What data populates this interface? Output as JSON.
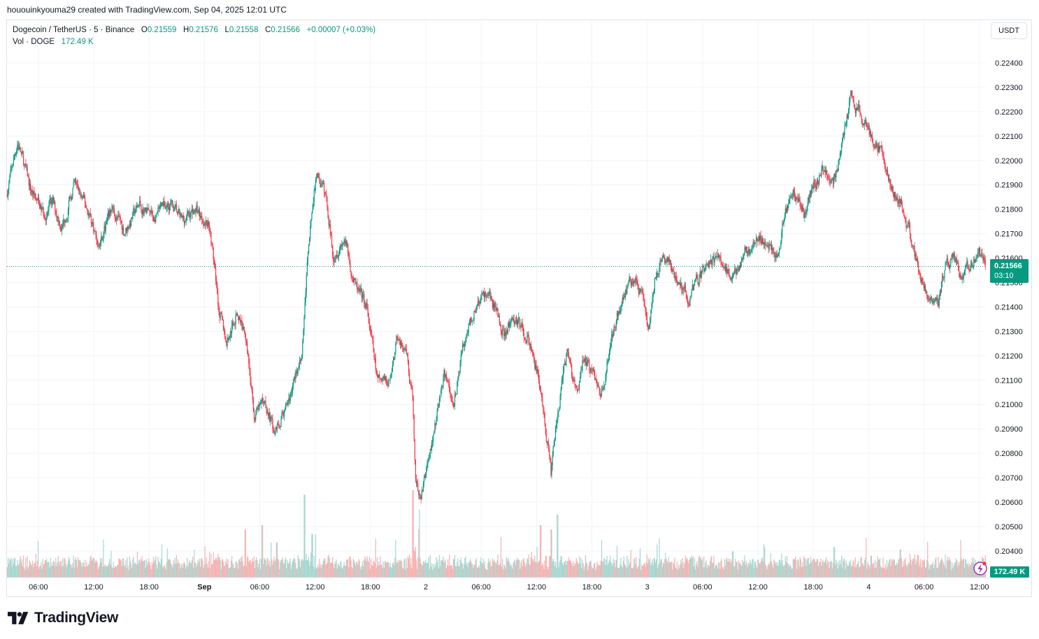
{
  "header": {
    "text": "hououinkyouma29 created with TradingView.com, Sep 04, 2025 12:01 UTC"
  },
  "legend": {
    "symbol": "Dogecoin / TetherUS · 5 · Binance",
    "open_label": "O",
    "open": "0.21559",
    "high_label": "H",
    "high": "0.21576",
    "low_label": "L",
    "low": "0.21558",
    "close_label": "C",
    "close": "0.21566",
    "change": "+0.00007 (+0.03%)",
    "vol_label": "Vol · DOGE",
    "vol_value": "172.49 K"
  },
  "currency": "USDT",
  "last_price": {
    "price": "0.21566",
    "countdown": "03:10"
  },
  "volume_tag": "172.49 K",
  "brand": {
    "name": "TradingView"
  },
  "colors": {
    "up": "#089981",
    "down": "#f23645",
    "up_vol": "#a7d7cf",
    "down_vol": "#f6b3b3",
    "grid": "#f0f3fa",
    "last_line": "#089981"
  },
  "chart_data": {
    "type": "candlestick",
    "title": "Dogecoin / TetherUS · 5 · Binance",
    "xlabel": "",
    "ylabel": "USDT",
    "ylim": [
      0.2034,
      0.2247
    ],
    "y_ticks": [
      "0.22400",
      "0.22300",
      "0.22200",
      "0.22100",
      "0.22000",
      "0.21900",
      "0.21800",
      "0.21700",
      "0.21600",
      "0.21500",
      "0.21400",
      "0.21300",
      "0.21200",
      "0.21100",
      "0.21000",
      "0.20900",
      "0.20800",
      "0.20700",
      "0.20600",
      "0.20500",
      "0.20400"
    ],
    "x_ticks": [
      "06:00",
      "12:00",
      "18:00",
      "Sep",
      "06:00",
      "12:00",
      "18:00",
      "2",
      "06:00",
      "12:00",
      "18:00",
      "3",
      "06:00",
      "12:00",
      "18:00",
      "4",
      "06:00",
      "12:00"
    ],
    "x_tick_hours": [
      6,
      12,
      18,
      24,
      30,
      36,
      42,
      48,
      54,
      60,
      66,
      72,
      78,
      84,
      90,
      96,
      102,
      108
    ],
    "x_range_hours": [
      2.6,
      108.7
    ],
    "last_close": 0.21566,
    "price_path": [
      [
        2.6,
        0.2186
      ],
      [
        3.8,
        0.2208
      ],
      [
        5.2,
        0.2188
      ],
      [
        6.6,
        0.2178
      ],
      [
        7.6,
        0.2182
      ],
      [
        8.6,
        0.2173
      ],
      [
        10.0,
        0.219
      ],
      [
        11.6,
        0.2178
      ],
      [
        12.6,
        0.2165
      ],
      [
        14.0,
        0.218
      ],
      [
        15.4,
        0.2171
      ],
      [
        17.0,
        0.2182
      ],
      [
        18.6,
        0.2176
      ],
      [
        20.2,
        0.2183
      ],
      [
        21.6,
        0.2175
      ],
      [
        23.0,
        0.218
      ],
      [
        24.6,
        0.2174
      ],
      [
        25.6,
        0.214
      ],
      [
        26.4,
        0.2125
      ],
      [
        27.6,
        0.2138
      ],
      [
        28.6,
        0.2128
      ],
      [
        29.4,
        0.2095
      ],
      [
        30.6,
        0.2102
      ],
      [
        31.6,
        0.2088
      ],
      [
        32.8,
        0.2098
      ],
      [
        33.8,
        0.211
      ],
      [
        34.6,
        0.2122
      ],
      [
        35.4,
        0.217
      ],
      [
        36.2,
        0.2195
      ],
      [
        37.2,
        0.2185
      ],
      [
        38.0,
        0.2162
      ],
      [
        39.2,
        0.2168
      ],
      [
        40.4,
        0.2148
      ],
      [
        41.6,
        0.214
      ],
      [
        42.8,
        0.211
      ],
      [
        44.0,
        0.2108
      ],
      [
        45.0,
        0.2128
      ],
      [
        46.0,
        0.2118
      ],
      [
        46.6,
        0.21
      ],
      [
        46.9,
        0.2072
      ],
      [
        47.4,
        0.206
      ],
      [
        48.2,
        0.2075
      ],
      [
        49.2,
        0.2095
      ],
      [
        50.0,
        0.2112
      ],
      [
        51.0,
        0.21
      ],
      [
        52.2,
        0.2125
      ],
      [
        53.4,
        0.214
      ],
      [
        54.6,
        0.2146
      ],
      [
        55.8,
        0.2138
      ],
      [
        56.6,
        0.2128
      ],
      [
        57.8,
        0.2136
      ],
      [
        59.0,
        0.2128
      ],
      [
        60.0,
        0.2115
      ],
      [
        60.8,
        0.2098
      ],
      [
        61.6,
        0.2072
      ],
      [
        62.4,
        0.2098
      ],
      [
        63.4,
        0.2122
      ],
      [
        64.4,
        0.2103
      ],
      [
        65.2,
        0.212
      ],
      [
        66.2,
        0.2112
      ],
      [
        67.2,
        0.2105
      ],
      [
        68.2,
        0.2128
      ],
      [
        69.4,
        0.2145
      ],
      [
        70.6,
        0.2153
      ],
      [
        71.4,
        0.2145
      ],
      [
        72.2,
        0.213
      ],
      [
        73.0,
        0.2155
      ],
      [
        74.2,
        0.216
      ],
      [
        75.2,
        0.215
      ],
      [
        76.6,
        0.2144
      ],
      [
        77.6,
        0.2152
      ],
      [
        78.8,
        0.2158
      ],
      [
        80.0,
        0.216
      ],
      [
        81.2,
        0.215
      ],
      [
        82.4,
        0.2162
      ],
      [
        83.6,
        0.2165
      ],
      [
        85.0,
        0.2168
      ],
      [
        86.2,
        0.216
      ],
      [
        87.0,
        0.218
      ],
      [
        88.0,
        0.2188
      ],
      [
        89.0,
        0.2178
      ],
      [
        90.0,
        0.219
      ],
      [
        91.2,
        0.2196
      ],
      [
        92.4,
        0.2192
      ],
      [
        93.4,
        0.2212
      ],
      [
        94.2,
        0.2226
      ],
      [
        95.2,
        0.2218
      ],
      [
        96.2,
        0.221
      ],
      [
        97.2,
        0.2205
      ],
      [
        98.4,
        0.219
      ],
      [
        99.6,
        0.2182
      ],
      [
        100.6,
        0.2168
      ],
      [
        101.4,
        0.2156
      ],
      [
        102.4,
        0.2146
      ],
      [
        103.6,
        0.2144
      ],
      [
        104.4,
        0.2156
      ],
      [
        105.2,
        0.216
      ],
      [
        106.2,
        0.2152
      ],
      [
        107.2,
        0.2158
      ],
      [
        108.0,
        0.2163
      ],
      [
        108.7,
        0.21566
      ]
    ],
    "volume_spikes_hours": [
      [
        34.8,
        0.95
      ],
      [
        46.6,
        1.0
      ],
      [
        47.2,
        0.55
      ],
      [
        60.4,
        0.6
      ],
      [
        61.6,
        0.55
      ],
      [
        62.2,
        0.72
      ],
      [
        28.4,
        0.55
      ],
      [
        30.2,
        0.6
      ],
      [
        35.6,
        0.5
      ],
      [
        92.2,
        0.35
      ],
      [
        81.2,
        0.3
      ],
      [
        84.6,
        0.35
      ],
      [
        99.4,
        0.32
      ],
      [
        31.8,
        0.4
      ],
      [
        96.2,
        0.25
      ]
    ]
  }
}
